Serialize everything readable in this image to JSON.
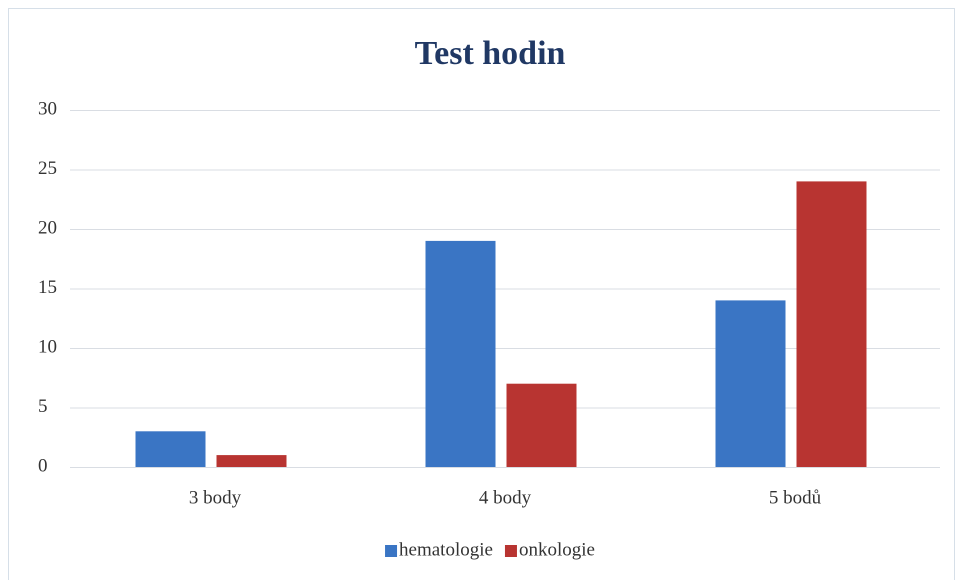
{
  "chart_data": {
    "type": "bar",
    "title": "Test hodin",
    "categories": [
      "3 body",
      "4 body",
      "5 bodů"
    ],
    "series": [
      {
        "name": "hematologie",
        "color": "#3a75c4",
        "values": [
          3,
          19,
          14
        ]
      },
      {
        "name": "onkologie",
        "color": "#b83431",
        "values": [
          1,
          7,
          24
        ]
      }
    ],
    "ylim": [
      0,
      30
    ],
    "yticks": [
      0,
      5,
      10,
      15,
      20,
      25,
      30
    ],
    "grid": true,
    "legend": "bottom"
  }
}
